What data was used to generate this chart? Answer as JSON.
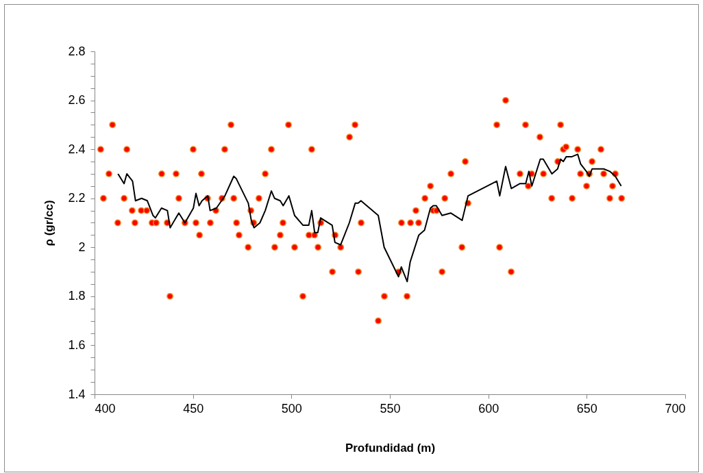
{
  "chart_data": {
    "type": "scatter",
    "xlabel": "Profundidad (m)",
    "ylabel": "ρ (gr/cc)",
    "xlim": [
      400,
      700
    ],
    "xticks": [
      400,
      450,
      500,
      550,
      600,
      650,
      700
    ],
    "ylim": [
      1.4,
      2.8
    ],
    "yticks": [
      1.4,
      {
        "value": 1.45,
        "label": null
      },
      {
        "value": 1.5,
        "label": null
      },
      {
        "value": 1.55,
        "label": null
      },
      1.6,
      {
        "value": 1.65,
        "label": null
      },
      {
        "value": 1.7,
        "label": null
      },
      {
        "value": 1.75,
        "label": null
      },
      1.8,
      {
        "value": 1.85,
        "label": null
      },
      {
        "value": 1.9,
        "label": null
      },
      {
        "value": 1.95,
        "label": null
      },
      {
        "value": 2,
        "label": "2"
      },
      {
        "value": 2.05,
        "label": null
      },
      {
        "value": 2.1,
        "label": null
      },
      {
        "value": 2.15,
        "label": null
      },
      2.2,
      {
        "value": 2.25,
        "label": null
      },
      {
        "value": 2.3,
        "label": null
      },
      {
        "value": 2.35,
        "label": null
      },
      2.4,
      {
        "value": 2.45,
        "label": null
      },
      {
        "value": 2.5,
        "label": null
      },
      {
        "value": 2.55,
        "label": null
      },
      2.6,
      {
        "value": 2.65,
        "label": null
      },
      {
        "value": 2.7,
        "label": null
      },
      {
        "value": 2.75,
        "label": null
      },
      2.8
    ],
    "grid": false,
    "series": [
      {
        "marker": "circle",
        "color": "#ff0000",
        "x": [
          403.1,
          404.5,
          407.3,
          409.1,
          411.8,
          415,
          416.4,
          419.1,
          420.5,
          423.7,
          426.5,
          429.2,
          431.3,
          434.1,
          436.9,
          438.3,
          441.4,
          442.8,
          445.9,
          450.1,
          451.5,
          453.3,
          454.3,
          457.4,
          458.8,
          461.6,
          464.7,
          466.1,
          469.3,
          470.7,
          472.1,
          473.4,
          478,
          479.4,
          480.8,
          483.5,
          486.7,
          489.8,
          491.5,
          494.3,
          495.7,
          498.5,
          501.6,
          505.8,
          508.9,
          510.3,
          511.7,
          513.5,
          514.9,
          520.8,
          522.2,
          525,
          529.5,
          532.3,
          534,
          535.4,
          544.1,
          547.2,
          554.5,
          555.9,
          558.7,
          560.5,
          563.2,
          564.6,
          567.8,
          570.6,
          572,
          573.7,
          576.5,
          577.9,
          581,
          586.6,
          588.3,
          589.7,
          604.3,
          605.7,
          608.8,
          611.6,
          616.1,
          618.9,
          620.3,
          622,
          626.2,
          628,
          632.2,
          635.3,
          636.7,
          638.1,
          639.5,
          642.6,
          645.4,
          646.8,
          649.9,
          651.3,
          652.7,
          657.2,
          658.6,
          661.7,
          663.1,
          664.5,
          667.7
        ],
        "values": [
          2.4,
          2.2,
          2.3,
          2.5,
          2.1,
          2.2,
          2.4,
          2.15,
          2.1,
          2.15,
          2.15,
          2.1,
          2.1,
          2.3,
          2.1,
          1.8,
          2.3,
          2.2,
          2.1,
          2.4,
          2.1,
          2.05,
          2.3,
          2.2,
          2.1,
          2.15,
          2.2,
          2.4,
          2.5,
          2.2,
          2.1,
          2.05,
          2.0,
          2.15,
          2.1,
          2.2,
          2.3,
          2.4,
          2.0,
          2.05,
          2.1,
          2.5,
          2.0,
          1.8,
          2.05,
          2.4,
          2.05,
          2.0,
          2.1,
          1.9,
          2.05,
          2.0,
          2.45,
          2.5,
          1.9,
          2.1,
          1.7,
          1.8,
          1.9,
          2.1,
          1.8,
          2.1,
          2.15,
          2.1,
          2.2,
          2.25,
          2.15,
          2.15,
          1.9,
          2.2,
          2.3,
          2.0,
          2.35,
          2.18,
          2.5,
          2.0,
          2.6,
          1.9,
          2.3,
          2.5,
          2.25,
          2.3,
          2.45,
          2.3,
          2.2,
          2.35,
          2.5,
          2.4,
          2.41,
          2.2,
          2.4,
          2.3,
          2.25,
          2.3,
          2.35,
          2.4,
          2.3,
          2.2,
          2.25,
          2.3,
          2.2
        ]
      },
      {
        "type": "line",
        "line_style": "solid",
        "marker": "none",
        "color": "#000000",
        "x": [
          411.9,
          415,
          416.4,
          419.3,
          420.8,
          423.9,
          426.8,
          429.7,
          430.9,
          434,
          437,
          438.4,
          442.8,
          445.9,
          450.2,
          451.5,
          453.1,
          454.6,
          457.5,
          458.7,
          461.9,
          464.5,
          466.2,
          470.7,
          472,
          478.1,
          479.6,
          481,
          484,
          486.7,
          489.8,
          491.4,
          494.3,
          495.8,
          498.7,
          501.6,
          505.9,
          508.8,
          510.3,
          511.8,
          513.4,
          514.8,
          520.7,
          522.1,
          525,
          529.4,
          532.4,
          533.9,
          535.3,
          544.1,
          547.1,
          554.4,
          555.8,
          558.8,
          560.3,
          564.7,
          567.6,
          570.6,
          572,
          573.6,
          576.5,
          580.9,
          586.7,
          589.7,
          604.3,
          605.8,
          608.8,
          611.7,
          616.1,
          619,
          620.6,
          622.1,
          626.4,
          627.9,
          632.3,
          635.2,
          636.7,
          638.1,
          639.6,
          642.5,
          645.4,
          646.9,
          649.8,
          651.3,
          652.7,
          658.6,
          661.7,
          664.5,
          667.5
        ],
        "values": [
          2.3,
          2.26,
          2.3,
          2.27,
          2.19,
          2.2,
          2.19,
          2.13,
          2.12,
          2.16,
          2.15,
          2.08,
          2.14,
          2.1,
          2.16,
          2.22,
          2.17,
          2.19,
          2.21,
          2.15,
          2.16,
          2.19,
          2.21,
          2.29,
          2.28,
          2.18,
          2.11,
          2.08,
          2.1,
          2.15,
          2.23,
          2.2,
          2.19,
          2.17,
          2.21,
          2.13,
          2.09,
          2.09,
          2.15,
          2.06,
          2.06,
          2.12,
          2.09,
          2.02,
          2.01,
          2.1,
          2.18,
          2.18,
          2.19,
          2.13,
          2.0,
          1.88,
          1.92,
          1.86,
          1.94,
          2.05,
          2.07,
          2.16,
          2.17,
          2.17,
          2.13,
          2.14,
          2.11,
          2.21,
          2.27,
          2.21,
          2.33,
          2.24,
          2.26,
          2.26,
          2.31,
          2.25,
          2.36,
          2.36,
          2.3,
          2.32,
          2.36,
          2.35,
          2.37,
          2.37,
          2.38,
          2.34,
          2.31,
          2.29,
          2.32,
          2.32,
          2.31,
          2.29,
          2.25
        ]
      }
    ]
  }
}
